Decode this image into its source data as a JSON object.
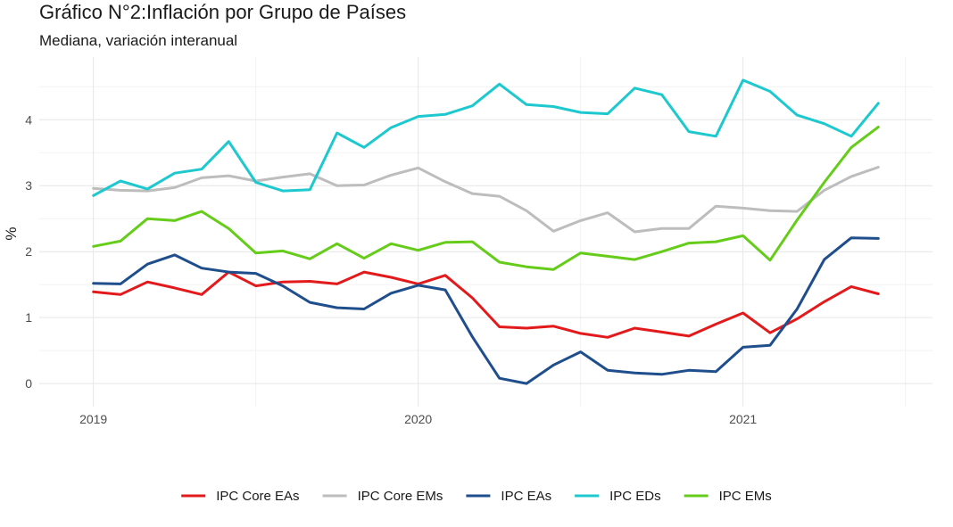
{
  "chart_data": {
    "type": "line",
    "title": "Gráfico N°2:Inflación por Grupo de Países",
    "subtitle": "Mediana, variación interanual",
    "xlabel": "",
    "ylabel": "%",
    "x_ticks": [
      "2019",
      "2020",
      "2021"
    ],
    "y_ticks": [
      "0",
      "1",
      "2",
      "3",
      "4"
    ],
    "xlim": [
      "2018-11",
      "2021-08"
    ],
    "ylim": [
      -0.35,
      4.95
    ],
    "grid": true,
    "legend_position": "bottom",
    "x": [
      "2019-01",
      "2019-02",
      "2019-03",
      "2019-04",
      "2019-05",
      "2019-06",
      "2019-07",
      "2019-08",
      "2019-09",
      "2019-10",
      "2019-11",
      "2019-12",
      "2020-01",
      "2020-02",
      "2020-03",
      "2020-04",
      "2020-05",
      "2020-06",
      "2020-07",
      "2020-08",
      "2020-09",
      "2020-10",
      "2020-11",
      "2020-12",
      "2021-01",
      "2021-02",
      "2021-03",
      "2021-04",
      "2021-05",
      "2021-06"
    ],
    "series": [
      {
        "name": "IPC Core EAs",
        "color": "#e31a1c",
        "values": [
          1.39,
          1.35,
          1.54,
          1.45,
          1.35,
          1.69,
          1.48,
          1.54,
          1.55,
          1.51,
          1.69,
          1.61,
          1.51,
          1.64,
          1.3,
          0.86,
          0.84,
          0.87,
          0.76,
          0.7,
          0.84,
          0.78,
          0.72,
          0.9,
          1.07,
          0.77,
          0.98,
          1.24,
          1.47,
          1.36
        ]
      },
      {
        "name": "IPC Core EMs",
        "color": "#bdbdbd",
        "values": [
          2.96,
          2.93,
          2.92,
          2.97,
          3.12,
          3.15,
          3.07,
          3.13,
          3.18,
          3.0,
          3.01,
          3.16,
          3.27,
          3.06,
          2.88,
          2.84,
          2.62,
          2.31,
          2.47,
          2.59,
          2.3,
          2.35,
          2.35,
          2.69,
          2.66,
          2.62,
          2.61,
          2.93,
          3.14,
          3.28
        ]
      },
      {
        "name": "IPC EAs",
        "color": "#1f4e8c",
        "values": [
          1.52,
          1.51,
          1.81,
          1.95,
          1.75,
          1.69,
          1.67,
          1.48,
          1.23,
          1.15,
          1.13,
          1.37,
          1.49,
          1.42,
          0.71,
          0.08,
          0.0,
          0.28,
          0.48,
          0.2,
          0.16,
          0.14,
          0.2,
          0.18,
          0.55,
          0.58,
          1.13,
          1.88,
          2.21,
          2.2
        ]
      },
      {
        "name": "IPC EDs",
        "color": "#1dc8cf",
        "values": [
          2.85,
          3.07,
          2.95,
          3.19,
          3.25,
          3.67,
          3.05,
          2.92,
          2.94,
          3.8,
          3.58,
          3.88,
          4.05,
          4.08,
          4.21,
          4.54,
          4.23,
          4.2,
          4.11,
          4.09,
          4.48,
          4.38,
          3.82,
          3.75,
          4.6,
          4.43,
          4.07,
          3.94,
          3.75,
          4.25
        ]
      },
      {
        "name": "IPC EMs",
        "color": "#66cc1a",
        "values": [
          2.08,
          2.16,
          2.5,
          2.47,
          2.61,
          2.35,
          1.98,
          2.01,
          1.89,
          2.12,
          1.9,
          2.12,
          2.02,
          2.14,
          2.15,
          1.84,
          1.77,
          1.73,
          1.98,
          1.93,
          1.88,
          2.0,
          2.13,
          2.15,
          2.24,
          1.87,
          2.48,
          3.05,
          3.58,
          3.89
        ]
      }
    ]
  }
}
